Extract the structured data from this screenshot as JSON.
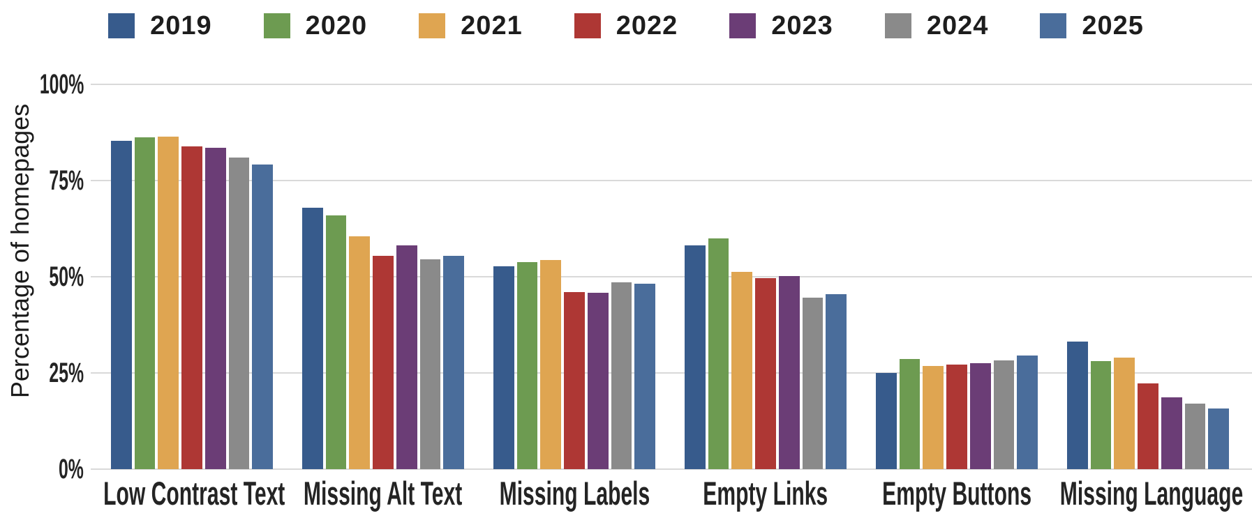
{
  "chart_data": {
    "type": "bar",
    "title": "",
    "ylabel": "Percentage of homepages",
    "xlabel": "",
    "ylim": [
      0,
      100
    ],
    "grid": true,
    "legend_position": "top",
    "yticks": [
      {
        "label": "0%",
        "value": 0
      },
      {
        "label": "25%",
        "value": 25
      },
      {
        "label": "50%",
        "value": 50
      },
      {
        "label": "75%",
        "value": 75
      },
      {
        "label": "100%",
        "value": 100
      }
    ],
    "categories": [
      "Low Contrast Text",
      "Missing Alt Text",
      "Missing Labels",
      "Empty Links",
      "Empty Buttons",
      "Missing Language"
    ],
    "series": [
      {
        "name": "2019",
        "color": "#375B8C",
        "values": [
          85.3,
          68.0,
          52.8,
          58.1,
          25.0,
          33.1
        ]
      },
      {
        "name": "2020",
        "color": "#6D9B51",
        "values": [
          86.3,
          66.0,
          53.8,
          59.9,
          28.7,
          28.0
        ]
      },
      {
        "name": "2021",
        "color": "#DFA551",
        "values": [
          86.4,
          60.6,
          54.4,
          51.3,
          26.9,
          28.9
        ]
      },
      {
        "name": "2022",
        "color": "#AE3734",
        "values": [
          83.9,
          55.4,
          46.1,
          49.7,
          27.2,
          22.3
        ]
      },
      {
        "name": "2023",
        "color": "#6B3D76",
        "values": [
          83.6,
          58.2,
          45.9,
          50.1,
          27.5,
          18.6
        ]
      },
      {
        "name": "2024",
        "color": "#8A8A8A",
        "values": [
          81.0,
          54.5,
          48.6,
          44.6,
          28.2,
          17.1
        ]
      },
      {
        "name": "2025",
        "color": "#4A6D9B",
        "values": [
          79.1,
          55.5,
          48.2,
          45.4,
          29.6,
          15.8
        ]
      }
    ]
  },
  "colors": {
    "background": "#ffffff",
    "gridline": "#d9d9d9",
    "axis_text": "#242424",
    "legend_text": "#1d1d1d"
  }
}
